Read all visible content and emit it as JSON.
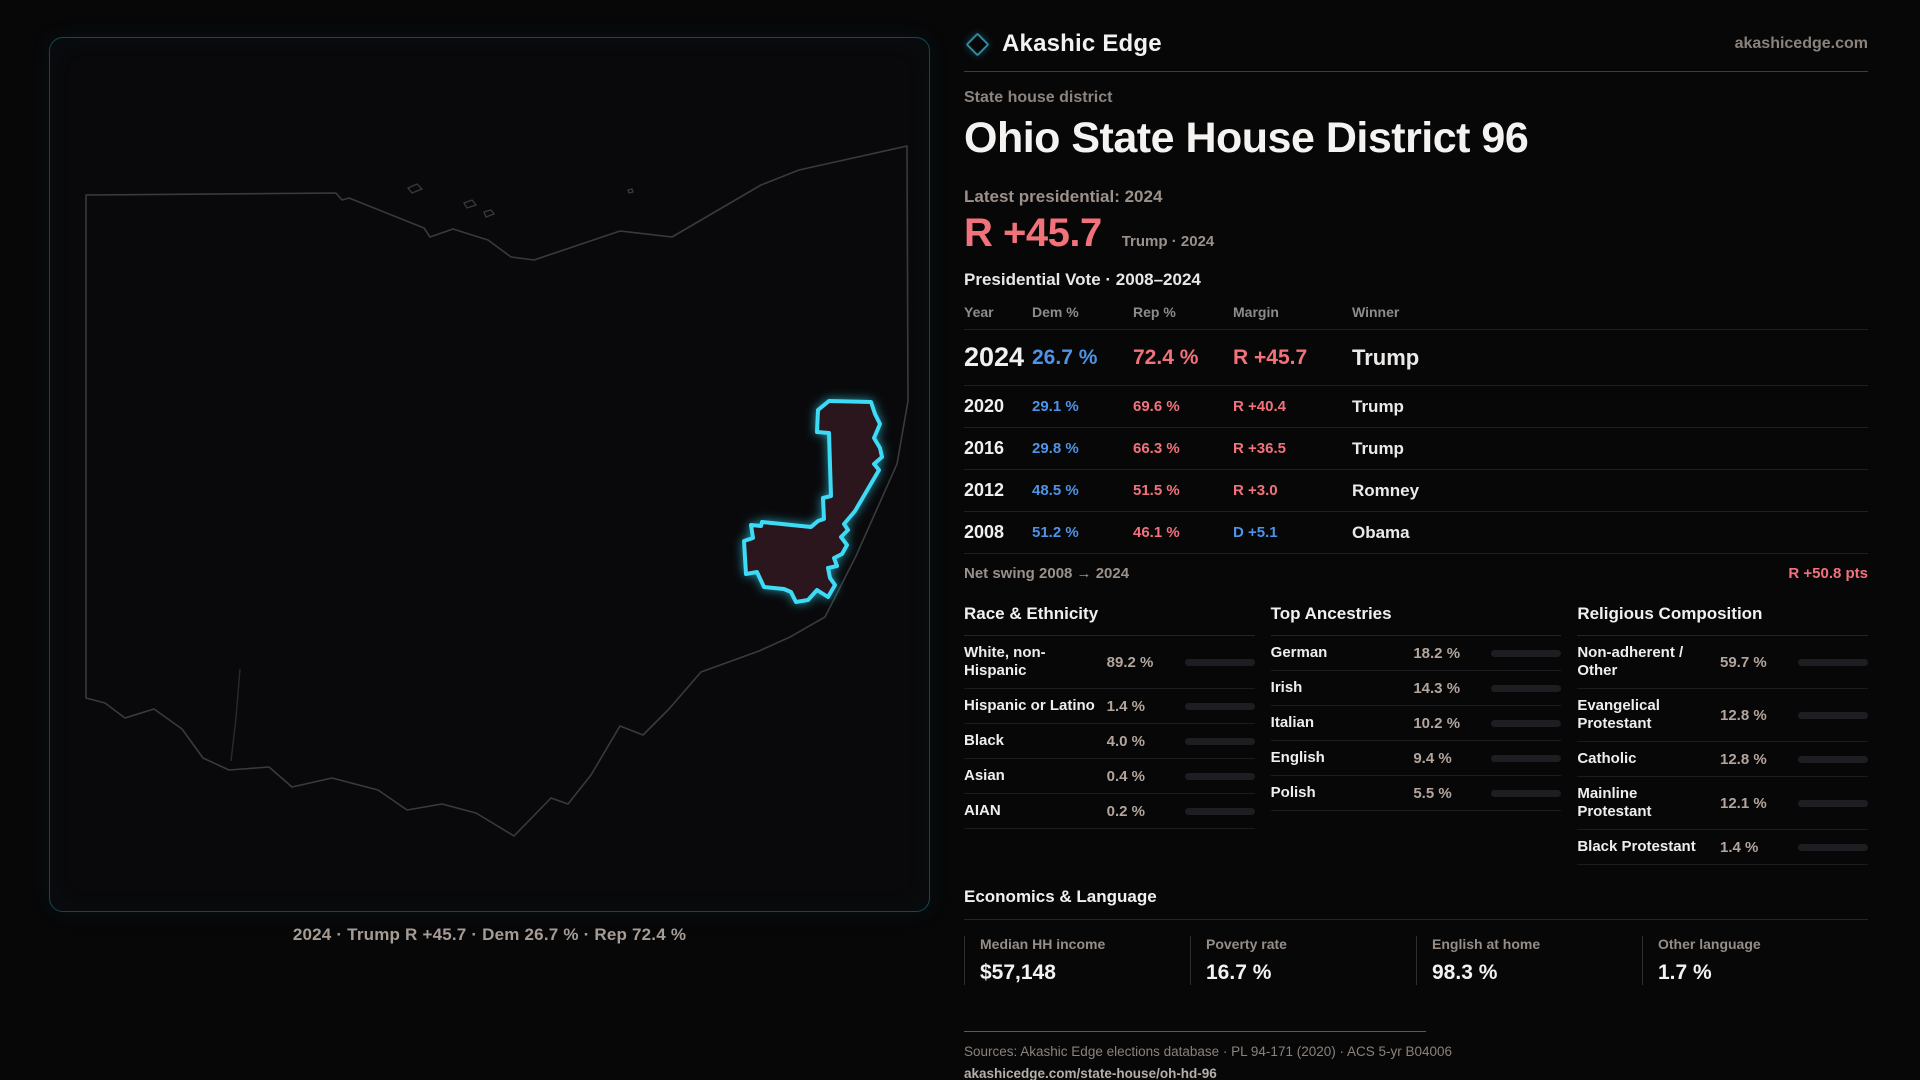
{
  "brand": {
    "name": "Akashic Edge",
    "site": "akashicedge.com"
  },
  "page": {
    "kicker": "State house district",
    "title": "Ohio State House District 96"
  },
  "latest": {
    "label": "Latest presidential: 2024",
    "margin": "R +45.7",
    "note": "Trump · 2024"
  },
  "vote_table": {
    "title": "Presidential Vote · 2008–2024",
    "columns": [
      "Year",
      "Dem %",
      "Rep %",
      "Margin",
      "Winner"
    ],
    "rows": [
      {
        "year": "2024",
        "dem": "26.7 %",
        "rep": "72.4 %",
        "margin": "R +45.7",
        "winner": "Trump",
        "margin_color": "#f2727c",
        "size": "big"
      },
      {
        "year": "2020",
        "dem": "29.1 %",
        "rep": "69.6 %",
        "margin": "R +40.4",
        "winner": "Trump",
        "margin_color": "#f2727c",
        "size": ""
      },
      {
        "year": "2016",
        "dem": "29.8 %",
        "rep": "66.3 %",
        "margin": "R +36.5",
        "winner": "Trump",
        "margin_color": "#f2727c",
        "size": ""
      },
      {
        "year": "2012",
        "dem": "48.5 %",
        "rep": "51.5 %",
        "margin": "R +3.0",
        "winner": "Romney",
        "margin_color": "#f2727c",
        "size": ""
      },
      {
        "year": "2008",
        "dem": "51.2 %",
        "rep": "46.1 %",
        "margin": "D +5.1",
        "winner": "Obama",
        "margin_color": "#4e93e6",
        "size": ""
      }
    ]
  },
  "swing": {
    "label": "Net swing 2008 → 2024",
    "value": "R +50.8 pts"
  },
  "race": {
    "title": "Race & Ethnicity",
    "rows": [
      {
        "label": "White, non-Hispanic",
        "value": "89.2 %",
        "pct": 89.2,
        "color": "#a9bdd9"
      },
      {
        "label": "Hispanic or Latino",
        "value": "1.4 %",
        "pct": 1.4,
        "color": "#e09b3d"
      },
      {
        "label": "Black",
        "value": "4.0 %",
        "pct": 4.0,
        "color": "#8a7ae8"
      },
      {
        "label": "Asian",
        "value": "0.4 %",
        "pct": 0.4,
        "color": "#a9bdd9"
      },
      {
        "label": "AIAN",
        "value": "0.2 %",
        "pct": 0.2,
        "color": "#a9bdd9"
      }
    ]
  },
  "ancestries": {
    "title": "Top Ancestries",
    "rows": [
      {
        "label": "German",
        "value": "18.2 %",
        "pct": 18.2,
        "color": "#9fb4cc"
      },
      {
        "label": "Irish",
        "value": "14.3 %",
        "pct": 14.3,
        "color": "#9fb4cc"
      },
      {
        "label": "Italian",
        "value": "10.2 %",
        "pct": 10.2,
        "color": "#9fb4cc"
      },
      {
        "label": "English",
        "value": "9.4 %",
        "pct": 9.4,
        "color": "#9fb4cc"
      },
      {
        "label": "Polish",
        "value": "5.5 %",
        "pct": 5.5,
        "color": "#9fb4cc"
      }
    ]
  },
  "religion": {
    "title": "Religious Composition",
    "rows": [
      {
        "label": "Non-adherent / Other",
        "value": "59.7 %",
        "pct": 59.7,
        "color": "#8b95a6"
      },
      {
        "label": "Evangelical Protestant",
        "value": "12.8 %",
        "pct": 12.8,
        "color": "#e07070"
      },
      {
        "label": "Catholic",
        "value": "12.8 %",
        "pct": 12.8,
        "color": "#e2b33e"
      },
      {
        "label": "Mainline Protestant",
        "value": "12.1 %",
        "pct": 12.1,
        "color": "#5b9bd5"
      },
      {
        "label": "Black Protestant",
        "value": "1.4 %",
        "pct": 1.4,
        "color": "#d8dce8"
      }
    ]
  },
  "economics": {
    "title": "Economics & Language",
    "stats": [
      {
        "label": "Median HH income",
        "value": "$57,148"
      },
      {
        "label": "Poverty rate",
        "value": "16.7 %"
      },
      {
        "label": "English at home",
        "value": "98.3 %"
      },
      {
        "label": "Other language",
        "value": "1.7 %"
      }
    ]
  },
  "map": {
    "caption": "2024 · Trump R +45.7 · Dem 26.7 % · Rep 72.4 %",
    "district_color": "#3ddbf5"
  },
  "sources": {
    "line": "Sources: Akashic Edge elections database · PL 94-171 (2020) · ACS 5-yr B04006",
    "url": "akashicedge.com/state-house/oh-hd-96"
  }
}
